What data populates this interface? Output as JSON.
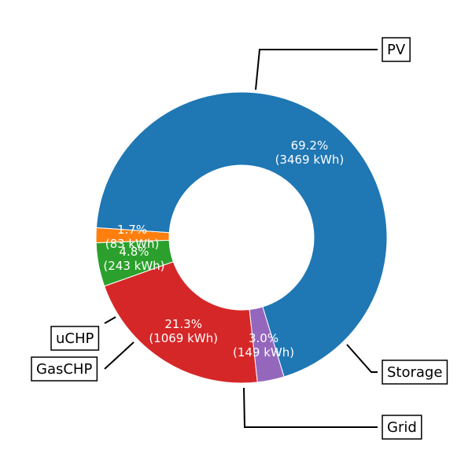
{
  "chart_data": {
    "type": "pie",
    "donut": true,
    "unit": "kWh",
    "title": "",
    "slices": [
      {
        "name": "PV",
        "value": 3469,
        "percent": "69.2%",
        "kwh": "(3469 kWh)",
        "color": "#1f77b4"
      },
      {
        "name": "uCHP",
        "value": 83,
        "percent": "1.7%",
        "kwh": "(83 kWh)",
        "color": "#ff7f0e"
      },
      {
        "name": "GasCHP",
        "value": 243,
        "percent": "4.8%",
        "kwh": "(243 kWh)",
        "color": "#2ca02c"
      },
      {
        "name": "Grid",
        "value": 1069,
        "percent": "21.3%",
        "kwh": "(1069 kWh)",
        "color": "#d62728"
      },
      {
        "name": "Storage",
        "value": 149,
        "percent": "3.0%",
        "kwh": "(149 kWh)",
        "color": "#9467bd"
      }
    ],
    "legend": "callout boxes"
  }
}
